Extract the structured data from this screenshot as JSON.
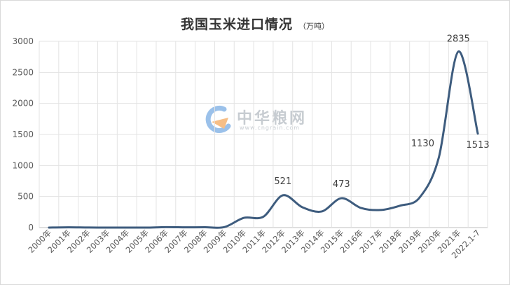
{
  "chart_data": {
    "type": "line",
    "title": "我国玉米进口情况",
    "unit": "（万吨）",
    "xlabel": "",
    "ylabel": "",
    "ylim": [
      0,
      3000
    ],
    "yticks": [
      0,
      500,
      1000,
      1500,
      2000,
      2500,
      3000
    ],
    "categories": [
      "2000年",
      "2001年",
      "2002年",
      "2003年",
      "2004年",
      "2005年",
      "2006年",
      "2007年",
      "2008年",
      "2009年",
      "2010年",
      "2011年",
      "2012年",
      "2013年",
      "2014年",
      "2015年",
      "2016年",
      "2017年",
      "2018年",
      "2019年",
      "2020年",
      "2021年",
      "2022.1-7"
    ],
    "series": [
      {
        "values": [
          0,
          4,
          1,
          0,
          0,
          0,
          7,
          4,
          5,
          8,
          157,
          175,
          521,
          327,
          260,
          473,
          317,
          283,
          352,
          479,
          1130,
          2835,
          1513
        ],
        "color": "#3e5c7e"
      }
    ],
    "data_labels": [
      {
        "index": 12,
        "text": "521"
      },
      {
        "index": 15,
        "text": "473"
      },
      {
        "index": 20,
        "text": "1130"
      },
      {
        "index": 21,
        "text": "2835"
      },
      {
        "index": 22,
        "text": "1513"
      }
    ],
    "grid": true,
    "legend": "none"
  },
  "watermark": {
    "brand": "中华粮网",
    "url": "www.cngrain.com",
    "logo_colors": [
      "#4a90d9",
      "#f08a24"
    ]
  }
}
